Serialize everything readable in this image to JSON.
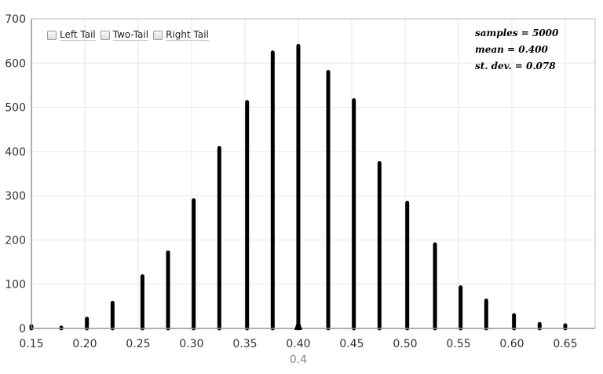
{
  "controls": [
    {
      "name": "left-tail-checkbox",
      "label": "Left Tail",
      "checked": false
    },
    {
      "name": "two-tail-checkbox",
      "label": "Two-Tail",
      "checked": false
    },
    {
      "name": "right-tail-checkbox",
      "label": "Right Tail",
      "checked": false
    }
  ],
  "stats": {
    "samples": "samples = 5000",
    "mean": "mean = 0.400",
    "sd": "st. dev. = 0.078"
  },
  "marker": {
    "value": 0.4,
    "label": "0.4"
  },
  "colors": {
    "bar": "#000000",
    "grid": "#e6e6e6",
    "axis": "#444444",
    "tick_text": "#333333",
    "marker_text": "#888888"
  },
  "chart_data": {
    "type": "bar",
    "title": "",
    "xlabel": "",
    "ylabel": "",
    "xlim": [
      0.15,
      0.678
    ],
    "ylim": [
      0,
      700
    ],
    "grid": true,
    "x_ticks": [
      0.15,
      0.2,
      0.25,
      0.3,
      0.35,
      0.4,
      0.45,
      0.5,
      0.55,
      0.6,
      0.65
    ],
    "x_tick_labels": [
      "0.15",
      "0.20",
      "0.25",
      "0.30",
      "0.35",
      "0.40",
      "0.45",
      "0.50",
      "0.55",
      "0.60",
      "0.65"
    ],
    "y_ticks": [
      0,
      100,
      200,
      300,
      400,
      500,
      600,
      700
    ],
    "y_tick_labels": [
      "0",
      "100",
      "200",
      "300",
      "400",
      "500",
      "600",
      "700"
    ],
    "x": [
      0.15,
      0.178,
      0.202,
      0.226,
      0.254,
      0.278,
      0.302,
      0.326,
      0.352,
      0.376,
      0.4,
      0.428,
      0.452,
      0.476,
      0.502,
      0.528,
      0.552,
      0.576,
      0.602,
      0.626,
      0.65
    ],
    "values": [
      5,
      2,
      22,
      58,
      118,
      172,
      290,
      408,
      512,
      624,
      639,
      580,
      516,
      374,
      284,
      190,
      93,
      63,
      30,
      10,
      7
    ]
  }
}
